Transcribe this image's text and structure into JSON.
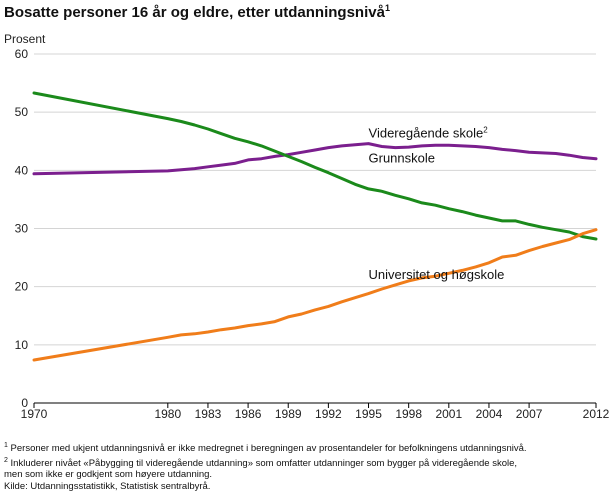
{
  "title": "Bosatte personer 16 år og eldre, etter utdanningsnivå",
  "title_footnote_ref": "1",
  "chart_data": {
    "type": "line",
    "title": "Bosatte personer 16 år og eldre, etter utdanningsnivå",
    "ylabel": "Prosent",
    "xlabel": "",
    "xlim": [
      1970,
      2012
    ],
    "ylim": [
      0,
      60
    ],
    "yticks": [
      0,
      10,
      20,
      30,
      40,
      50,
      60
    ],
    "xticks": [
      1970,
      1980,
      1983,
      1986,
      1989,
      1992,
      1995,
      1998,
      2001,
      2004,
      2007,
      2012
    ],
    "grid": true,
    "series": [
      {
        "name": "Videregående skole",
        "footnote_ref": "2",
        "color": "#7b1f8e",
        "x": [
          1970,
          1980,
          1981,
          1982,
          1983,
          1984,
          1985,
          1986,
          1987,
          1988,
          1989,
          1990,
          1991,
          1992,
          1993,
          1994,
          1995,
          1996,
          1997,
          1998,
          1999,
          2000,
          2001,
          2002,
          2003,
          2004,
          2005,
          2006,
          2007,
          2008,
          2009,
          2010,
          2011,
          2012
        ],
        "y": [
          39.4,
          39.9,
          40.1,
          40.3,
          40.6,
          40.9,
          41.2,
          41.8,
          42.0,
          42.4,
          42.7,
          43.1,
          43.5,
          43.9,
          44.2,
          44.4,
          44.6,
          44.1,
          43.9,
          44.0,
          44.2,
          44.3,
          44.3,
          44.2,
          44.1,
          43.9,
          43.6,
          43.4,
          43.1,
          43.0,
          42.9,
          42.6,
          42.2,
          42.0
        ]
      },
      {
        "name": "Grunnskole",
        "color": "#1b8a1b",
        "x": [
          1970,
          1980,
          1981,
          1982,
          1983,
          1984,
          1985,
          1986,
          1987,
          1988,
          1989,
          1990,
          1991,
          1992,
          1993,
          1994,
          1995,
          1996,
          1997,
          1998,
          1999,
          2000,
          2001,
          2002,
          2003,
          2004,
          2005,
          2006,
          2007,
          2008,
          2009,
          2010,
          2011,
          2012
        ],
        "y": [
          53.3,
          48.9,
          48.4,
          47.8,
          47.1,
          46.3,
          45.5,
          44.9,
          44.2,
          43.3,
          42.4,
          41.5,
          40.5,
          39.6,
          38.6,
          37.6,
          36.8,
          36.4,
          35.7,
          35.1,
          34.4,
          34.0,
          33.4,
          32.9,
          32.3,
          31.8,
          31.3,
          31.3,
          30.7,
          30.2,
          29.8,
          29.4,
          28.6,
          28.2
        ]
      },
      {
        "name": "Universitet og høgskole",
        "color": "#f07d1a",
        "x": [
          1970,
          1980,
          1981,
          1982,
          1983,
          1984,
          1985,
          1986,
          1987,
          1988,
          1989,
          1990,
          1991,
          1992,
          1993,
          1994,
          1995,
          1996,
          1997,
          1998,
          1999,
          2000,
          2001,
          2002,
          2003,
          2004,
          2005,
          2006,
          2007,
          2008,
          2009,
          2010,
          2011,
          2012
        ],
        "y": [
          7.4,
          11.3,
          11.7,
          11.9,
          12.2,
          12.6,
          12.9,
          13.3,
          13.6,
          14.0,
          14.8,
          15.3,
          16.0,
          16.6,
          17.4,
          18.1,
          18.8,
          19.6,
          20.3,
          21.0,
          21.5,
          21.8,
          22.3,
          22.8,
          23.4,
          24.1,
          25.1,
          25.4,
          26.2,
          26.9,
          27.5,
          28.1,
          29.1,
          29.8
        ]
      }
    ]
  },
  "footnotes": {
    "note1_ref": "1",
    "note1": "Personer med ukjent utdanningsnivå er ikke medregnet i beregningen av prosentandeler for befolkningens utdanningsnivå.",
    "note2_ref": "2",
    "note2_line1": "Inkluderer nivået «Påbygging til videregående utdanning» som omfatter utdanninger som bygger på videregående skole,",
    "note2_line2": "men som ikke er godkjent som høyere utdanning.",
    "source": "Kilde: Utdanningsstatistikk, Statistisk sentralbyrå."
  }
}
